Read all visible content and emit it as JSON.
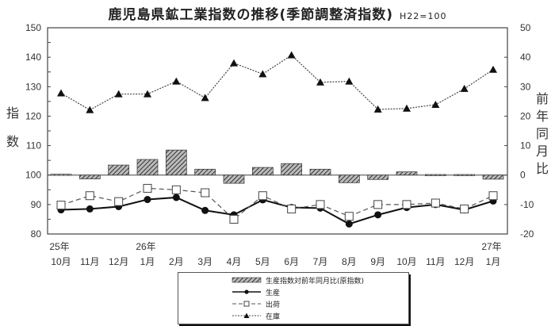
{
  "title": "鹿児島県鉱工業指数の推移(季節調整済指数)",
  "base_note": "H22=100",
  "left_axis_label": [
    "指",
    "数"
  ],
  "right_axis_label": [
    "前",
    "年",
    "同",
    "月",
    "比"
  ],
  "legend": {
    "bars": "生産指数対前年同月比(原指数)",
    "production": "生産",
    "shipments": "出荷",
    "inventory": "在庫"
  },
  "chart_data": {
    "type": "line",
    "title": "鹿児島県鉱工業指数の推移(季節調整済指数)",
    "subtitle": "H22=100",
    "xlabel": "",
    "ylabel": "指数",
    "y2label": "前年同月比",
    "ylim": [
      80,
      150
    ],
    "y2lim": [
      -20,
      50
    ],
    "yticks": [
      80,
      90,
      100,
      110,
      120,
      130,
      140,
      150
    ],
    "y2ticks": [
      -20,
      -10,
      0,
      10,
      20,
      30,
      40,
      50
    ],
    "grid": false,
    "legend_position": "bottom",
    "year_labels": [
      {
        "index": 0,
        "label": "25年"
      },
      {
        "index": 3,
        "label": "26年"
      },
      {
        "index": 15,
        "label": "27年"
      }
    ],
    "categories": [
      "10月",
      "11月",
      "12月",
      "1月",
      "2月",
      "3月",
      "4月",
      "5月",
      "6月",
      "7月",
      "8月",
      "9月",
      "10月",
      "11月",
      "12月",
      "1月"
    ],
    "series": [
      {
        "name": "生産指数対前年同月比(原指数)",
        "type": "bar",
        "axis": "right",
        "values": [
          0.3,
          -1.3,
          3.4,
          5.3,
          8.5,
          2.0,
          -2.8,
          2.6,
          3.9,
          2.0,
          -2.6,
          -1.5,
          1.1,
          0.2,
          0.2,
          -1.4
        ]
      },
      {
        "name": "生産",
        "type": "line",
        "axis": "left",
        "marker": "circle",
        "values": [
          88.2,
          88.5,
          89.3,
          91.7,
          92.4,
          88.0,
          86.5,
          91.6,
          89.0,
          88.8,
          83.4,
          86.5,
          89.0,
          90.0,
          88.2,
          91.2
        ]
      },
      {
        "name": "出荷",
        "type": "line",
        "axis": "left",
        "marker": "square",
        "values": [
          89.8,
          93.0,
          91.0,
          95.5,
          95.0,
          94.0,
          85.0,
          93.0,
          88.5,
          90.0,
          86.0,
          90.0,
          90.0,
          90.5,
          88.5,
          93.0
        ]
      },
      {
        "name": "在庫",
        "type": "line",
        "axis": "left",
        "marker": "triangle",
        "values": [
          127.8,
          122.1,
          127.5,
          127.5,
          131.8,
          126.2,
          138.0,
          134.3,
          140.7,
          131.5,
          131.8,
          122.3,
          122.6,
          123.9,
          129.3,
          135.8
        ]
      }
    ]
  },
  "colors": {
    "axis": "#444444",
    "bar_fill": "#7a7a7a",
    "line": "#111111"
  }
}
